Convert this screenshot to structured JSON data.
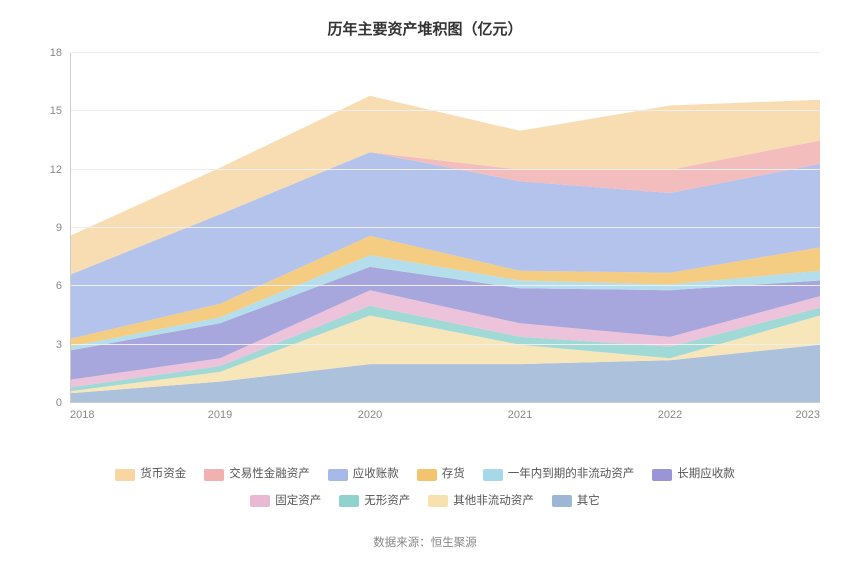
{
  "chart": {
    "type": "stacked-area",
    "title": "历年主要资产堆积图（亿元）",
    "background_color": "#ffffff",
    "grid_color": "#eeeeee",
    "axis_color": "#cccccc",
    "tick_font_color": "#888888",
    "tick_fontsize": 11,
    "title_fontsize": 15,
    "title_color": "#333333",
    "x": {
      "categories": [
        "2018",
        "2019",
        "2020",
        "2021",
        "2022",
        "2023"
      ]
    },
    "y": {
      "min": 0,
      "max": 18,
      "step": 3,
      "ticks": [
        0,
        3,
        6,
        9,
        12,
        15,
        18
      ]
    },
    "series": [
      {
        "name": "其它",
        "color": "#9db6d6",
        "values": [
          0.5,
          1.1,
          2.0,
          2.0,
          2.2,
          3.0
        ]
      },
      {
        "name": "其他非流动资产",
        "color": "#f7e2af",
        "values": [
          0.1,
          0.5,
          2.5,
          1.0,
          0.1,
          1.5
        ]
      },
      {
        "name": "无形资产",
        "color": "#8fd2ce",
        "values": [
          0.2,
          0.3,
          0.5,
          0.4,
          0.6,
          0.4
        ]
      },
      {
        "name": "固定资产",
        "color": "#e9b9d4",
        "values": [
          0.4,
          0.4,
          0.8,
          0.7,
          0.5,
          0.6
        ]
      },
      {
        "name": "长期应收款",
        "color": "#9896d7",
        "values": [
          1.5,
          1.8,
          1.2,
          1.8,
          2.4,
          0.8
        ]
      },
      {
        "name": "一年内到期的非流动资产",
        "color": "#a7d8e8",
        "values": [
          0.2,
          0.3,
          0.6,
          0.4,
          0.3,
          0.5
        ]
      },
      {
        "name": "存货",
        "color": "#f2c46d",
        "values": [
          0.4,
          0.7,
          1.0,
          0.5,
          0.6,
          1.2
        ]
      },
      {
        "name": "应收账款",
        "color": "#a6b9e8",
        "values": [
          3.3,
          4.6,
          4.3,
          4.6,
          4.1,
          4.3
        ]
      },
      {
        "name": "交易性金融资产",
        "color": "#f2b1b1",
        "values": [
          0.0,
          0.0,
          0.0,
          0.6,
          1.2,
          1.2
        ]
      },
      {
        "name": "货币资金",
        "color": "#f7d6a4",
        "values": [
          2.0,
          2.4,
          2.9,
          2.0,
          3.3,
          2.1
        ]
      }
    ],
    "legend_order": [
      "货币资金",
      "交易性金融资产",
      "应收账款",
      "存货",
      "一年内到期的非流动资产",
      "长期应收款",
      "固定资产",
      "无形资产",
      "其他非流动资产",
      "其它"
    ],
    "legend_fontsize": 11.5,
    "legend_color": "#555555",
    "source_label": "数据来源：恒生聚源",
    "source_fontsize": 11.5,
    "source_color": "#888888",
    "area_opacity": 0.85
  }
}
